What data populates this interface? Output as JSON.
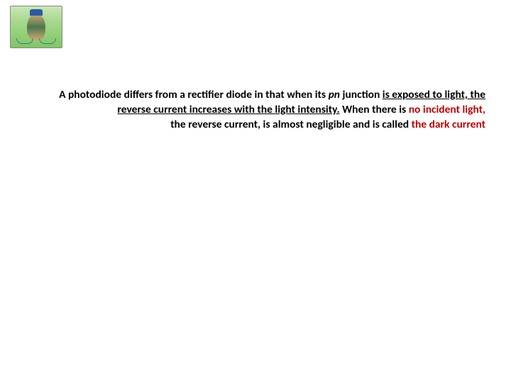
{
  "paragraph": {
    "seg1": "A photodiode differs from a rectifier diode in that when its ",
    "seg2_italic": "pn ",
    "seg3": "junction ",
    "seg4_underline": "is exposed to light, the reverse current increases with the light intensity.",
    "seg5": " When there is ",
    "seg6_red": "no incident light,",
    "seg7": "the reverse current, is almost negligible and is called ",
    "seg8_red": "the dark current"
  },
  "colors": {
    "text": "#000000",
    "red": "#c00000",
    "background": "#ffffff"
  },
  "typography": {
    "body_fontsize": 15.5,
    "body_weight": "bold",
    "font_family": "Calibri"
  }
}
